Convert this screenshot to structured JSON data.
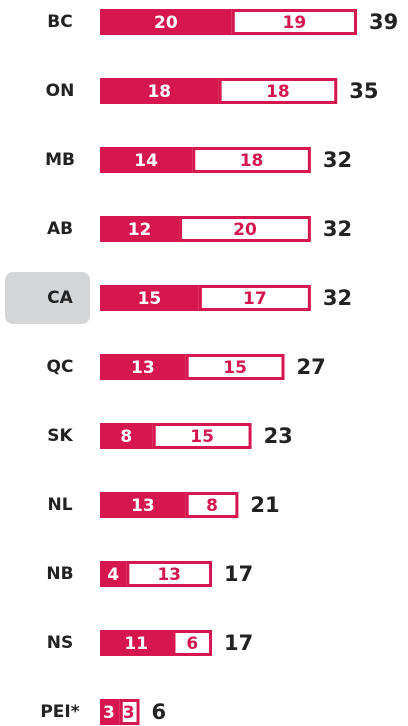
{
  "chart_data": {
    "type": "bar",
    "orientation": "horizontal",
    "stacked": true,
    "categories": [
      "BC",
      "ON",
      "MB",
      "AB",
      "CA",
      "QC",
      "SK",
      "NL",
      "NB",
      "NS",
      "PEI*"
    ],
    "series": [
      {
        "color": "#d6174f",
        "values": [
          20,
          18,
          14,
          12,
          15,
          13,
          8,
          13,
          4,
          11,
          3
        ]
      },
      {
        "color": "#ffffff",
        "values": [
          19,
          18,
          18,
          20,
          17,
          15,
          15,
          8,
          13,
          6,
          3
        ]
      }
    ],
    "totals": [
      39,
      35,
      32,
      32,
      32,
      27,
      23,
      21,
      17,
      17,
      6
    ]
  }
}
